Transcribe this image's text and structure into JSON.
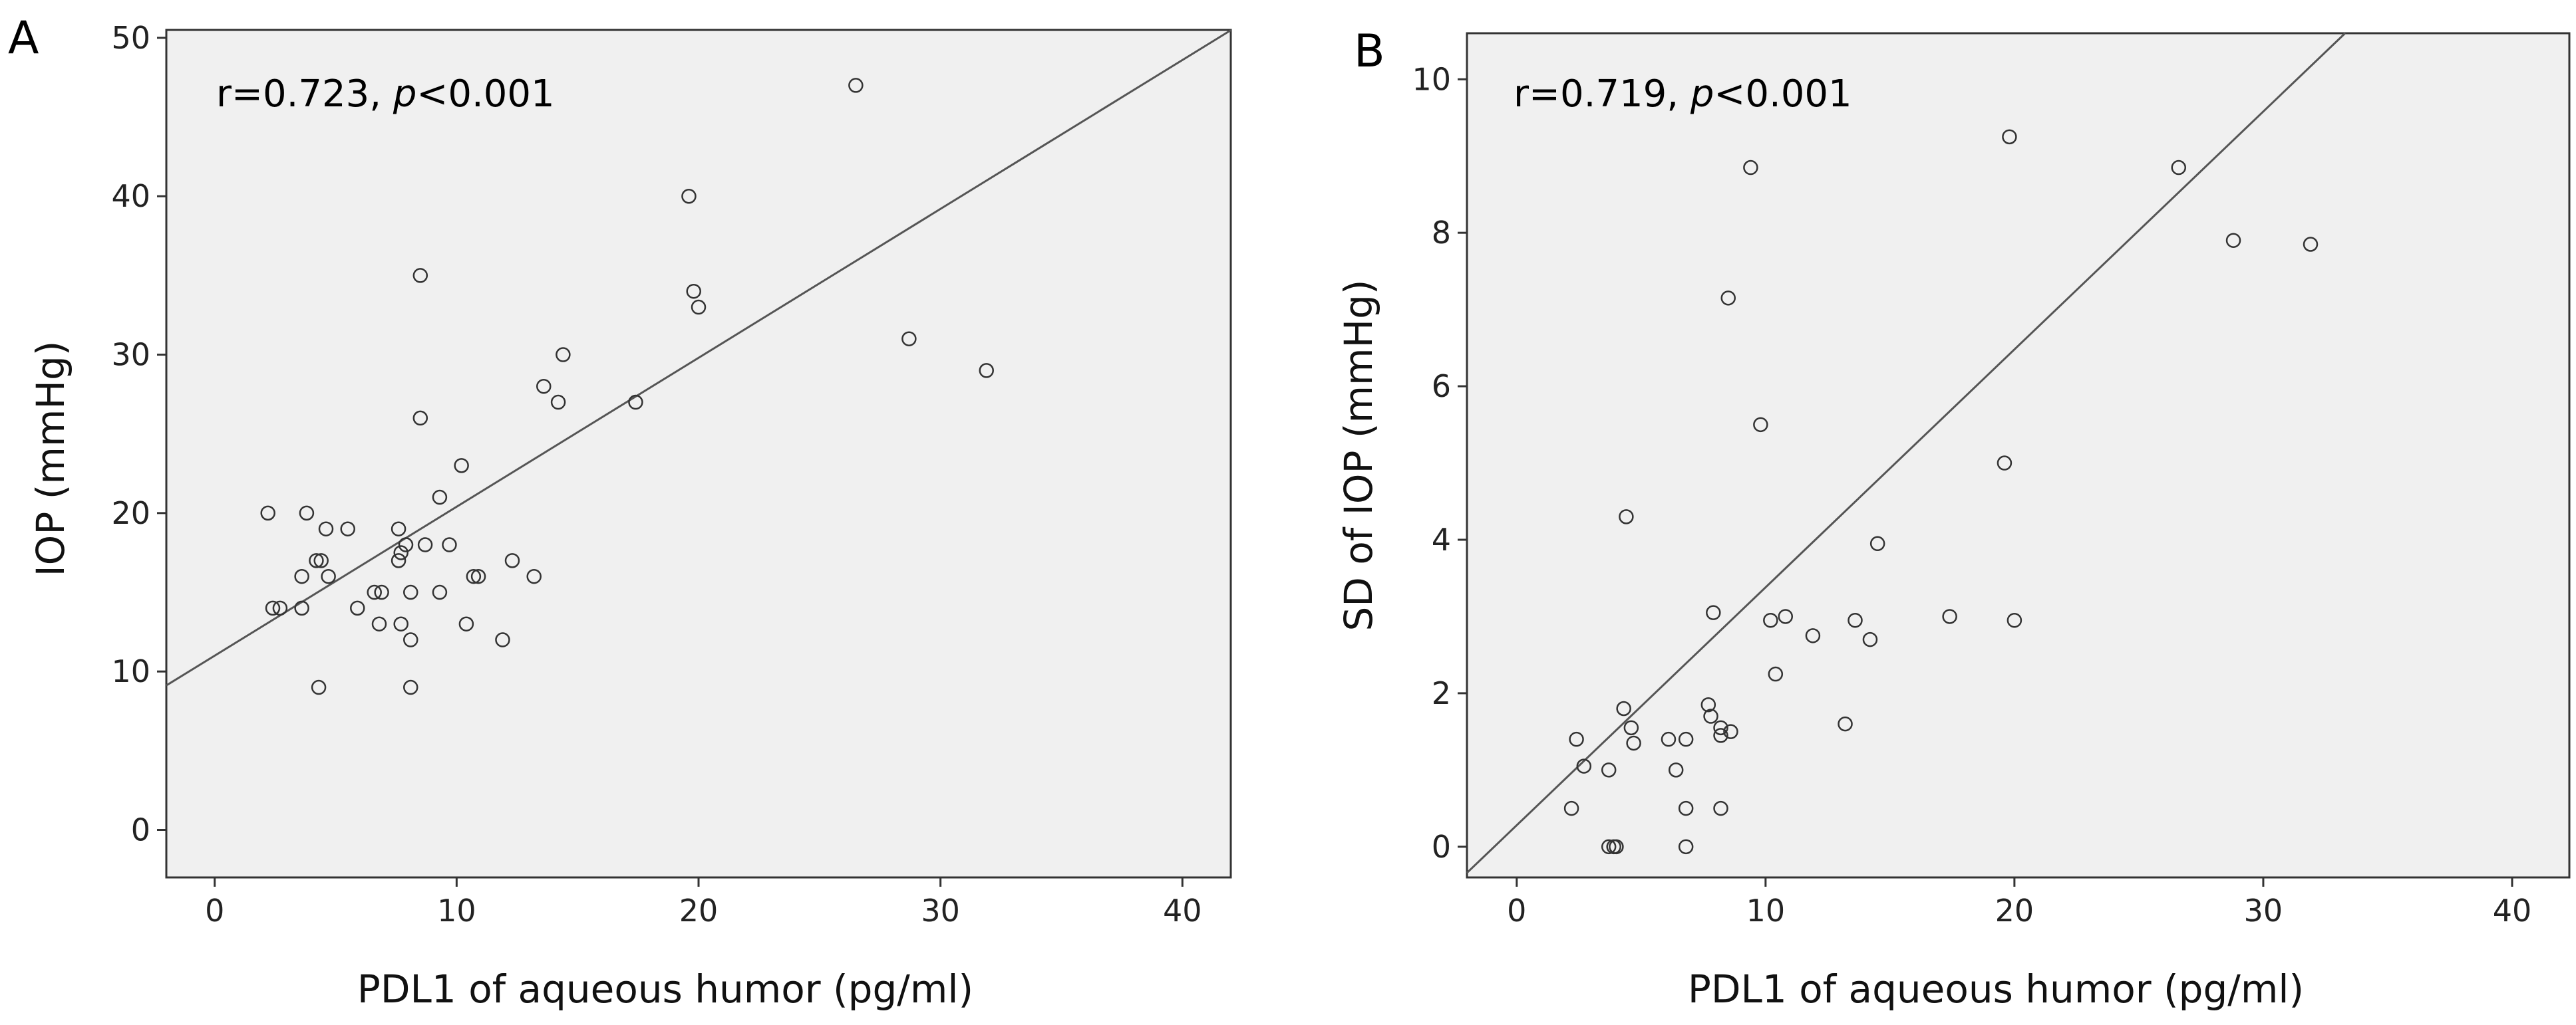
{
  "chart_data": [
    {
      "type": "scatter",
      "panel": "A",
      "annotation": {
        "r_text": "r=0.723, ",
        "p_symbol": "p",
        "p_text": "<0.001"
      },
      "xlabel": "PDL1 of aqueous humor (pg/ml)",
      "ylabel": "IOP (mmHg)",
      "xlim": [
        -2,
        42
      ],
      "ylim": [
        -3,
        50.5
      ],
      "xticks": [
        0,
        10,
        20,
        30,
        40
      ],
      "yticks": [
        0,
        10,
        20,
        30,
        40,
        50
      ],
      "grid": false,
      "fit_line": {
        "slope": 0.94,
        "intercept": 11.0
      },
      "points": [
        [
          2.2,
          20
        ],
        [
          2.4,
          14
        ],
        [
          2.7,
          14
        ],
        [
          3.6,
          16
        ],
        [
          3.6,
          14
        ],
        [
          3.8,
          20
        ],
        [
          4.2,
          17
        ],
        [
          4.4,
          17
        ],
        [
          4.3,
          9
        ],
        [
          4.6,
          19
        ],
        [
          4.7,
          16
        ],
        [
          5.5,
          19
        ],
        [
          5.9,
          14
        ],
        [
          6.6,
          15
        ],
        [
          6.8,
          13
        ],
        [
          6.9,
          15
        ],
        [
          7.6,
          19
        ],
        [
          7.6,
          17
        ],
        [
          7.7,
          13
        ],
        [
          7.7,
          17.5
        ],
        [
          7.9,
          18
        ],
        [
          8.1,
          15
        ],
        [
          8.1,
          12
        ],
        [
          8.1,
          9
        ],
        [
          8.5,
          35
        ],
        [
          8.5,
          26
        ],
        [
          8.7,
          18
        ],
        [
          9.3,
          21
        ],
        [
          9.3,
          15
        ],
        [
          9.7,
          18
        ],
        [
          10.2,
          23
        ],
        [
          10.4,
          13
        ],
        [
          10.7,
          16
        ],
        [
          10.9,
          16
        ],
        [
          11.9,
          12
        ],
        [
          12.3,
          17
        ],
        [
          13.2,
          16
        ],
        [
          13.6,
          28
        ],
        [
          14.2,
          27
        ],
        [
          14.4,
          30
        ],
        [
          17.4,
          27
        ],
        [
          19.6,
          40
        ],
        [
          19.8,
          34
        ],
        [
          20.0,
          33
        ],
        [
          26.5,
          47
        ],
        [
          28.7,
          31
        ],
        [
          31.9,
          29
        ]
      ]
    },
    {
      "type": "scatter",
      "panel": "B",
      "annotation": {
        "r_text": "r=0.719, ",
        "p_symbol": "p",
        "p_text": "<0.001"
      },
      "xlabel": "PDL1 of aqueous humor (pg/ml)",
      "ylabel": "SD of IOP (mmHg)",
      "xlim": [
        -2,
        42.3
      ],
      "ylim": [
        -0.4,
        10.6
      ],
      "xticks": [
        0,
        10,
        20,
        30,
        40
      ],
      "yticks": [
        0,
        2,
        4,
        6,
        8,
        10
      ],
      "grid": false,
      "fit_line": {
        "slope": 0.31,
        "intercept": 0.28
      },
      "points": [
        [
          2.2,
          0.5
        ],
        [
          2.4,
          1.4
        ],
        [
          2.7,
          1.05
        ],
        [
          3.7,
          1.0
        ],
        [
          3.7,
          0
        ],
        [
          3.9,
          0
        ],
        [
          4.0,
          0
        ],
        [
          4.3,
          1.8
        ],
        [
          4.4,
          4.3
        ],
        [
          4.6,
          1.55
        ],
        [
          4.7,
          1.35
        ],
        [
          6.1,
          1.4
        ],
        [
          6.4,
          1.0
        ],
        [
          6.8,
          1.4
        ],
        [
          6.8,
          0.5
        ],
        [
          6.8,
          0
        ],
        [
          7.7,
          1.85
        ],
        [
          7.8,
          1.7
        ],
        [
          7.9,
          3.05
        ],
        [
          8.2,
          1.45
        ],
        [
          8.2,
          1.55
        ],
        [
          8.2,
          0.5
        ],
        [
          8.5,
          7.15
        ],
        [
          8.6,
          1.5
        ],
        [
          9.4,
          8.85
        ],
        [
          9.8,
          5.5
        ],
        [
          10.2,
          2.95
        ],
        [
          10.4,
          2.25
        ],
        [
          10.8,
          3.0
        ],
        [
          11.9,
          2.75
        ],
        [
          13.2,
          1.6
        ],
        [
          13.6,
          2.95
        ],
        [
          14.2,
          2.7
        ],
        [
          14.5,
          3.95
        ],
        [
          17.4,
          3.0
        ],
        [
          19.6,
          5.0
        ],
        [
          19.8,
          9.25
        ],
        [
          20.0,
          2.95
        ],
        [
          26.6,
          8.85
        ],
        [
          28.8,
          7.9
        ],
        [
          31.9,
          7.85
        ]
      ]
    }
  ]
}
